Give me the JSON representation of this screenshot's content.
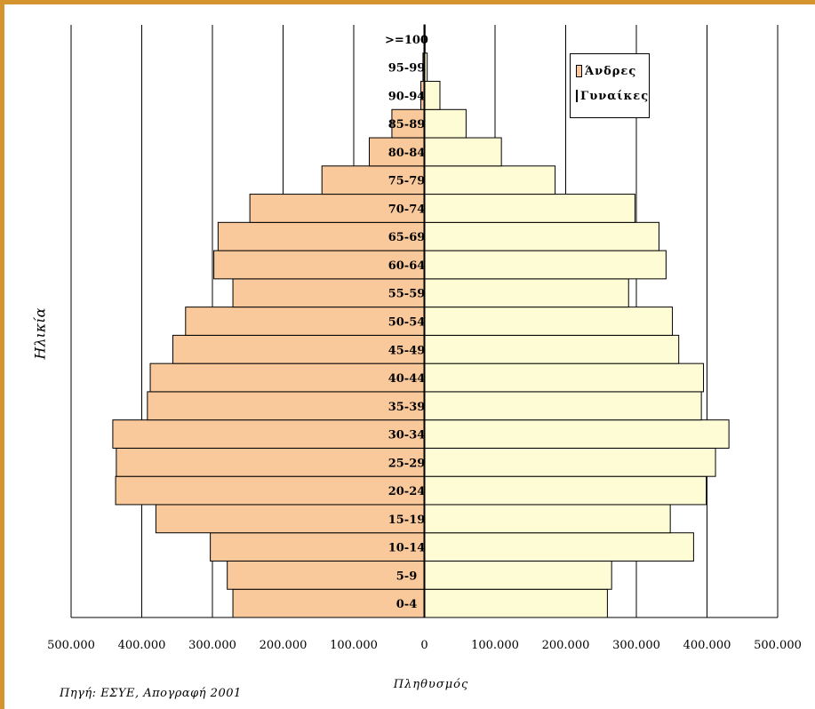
{
  "chart_data": {
    "type": "bar",
    "orientation": "horizontal",
    "subtype": "population-pyramid",
    "categories": [
      "0-4",
      "5-9",
      "10-14",
      "15-19",
      "20-24",
      "25-29",
      "30-34",
      "35-39",
      "40-44",
      "45-49",
      "50-54",
      "55-59",
      "60-64",
      "65-69",
      "70-74",
      "75-79",
      "80-84",
      "85-89",
      "90-94",
      "95-99",
      ">=100"
    ],
    "series": [
      {
        "name": "Άνδρες",
        "color": "#f9c89b",
        "values": [
          271000,
          279000,
          303000,
          380000,
          437000,
          436000,
          441000,
          392000,
          388000,
          356000,
          338000,
          271000,
          298000,
          292000,
          247000,
          145000,
          78000,
          46000,
          5000,
          2000,
          500
        ]
      },
      {
        "name": "Γυναίκες",
        "color": "#fefcd5",
        "values": [
          259000,
          265000,
          381000,
          348000,
          399000,
          412000,
          431000,
          392000,
          395000,
          360000,
          351000,
          289000,
          342000,
          332000,
          298000,
          185000,
          109000,
          59000,
          22000,
          4000,
          1000
        ]
      }
    ],
    "xticks": [
      "500.000",
      "400.000",
      "300.000",
      "200.000",
      "100.000",
      "0",
      "100.000",
      "200.000",
      "300.000",
      "400.000",
      "500.000"
    ],
    "xlim": [
      -500000,
      500000
    ],
    "xlabel": "Πληθυσμός",
    "ylabel": "Ηλικία",
    "grid": "vertical",
    "legend_position": "top-right"
  },
  "source_note": "Πηγή: ΕΣΥΕ, Απογραφή 2001"
}
